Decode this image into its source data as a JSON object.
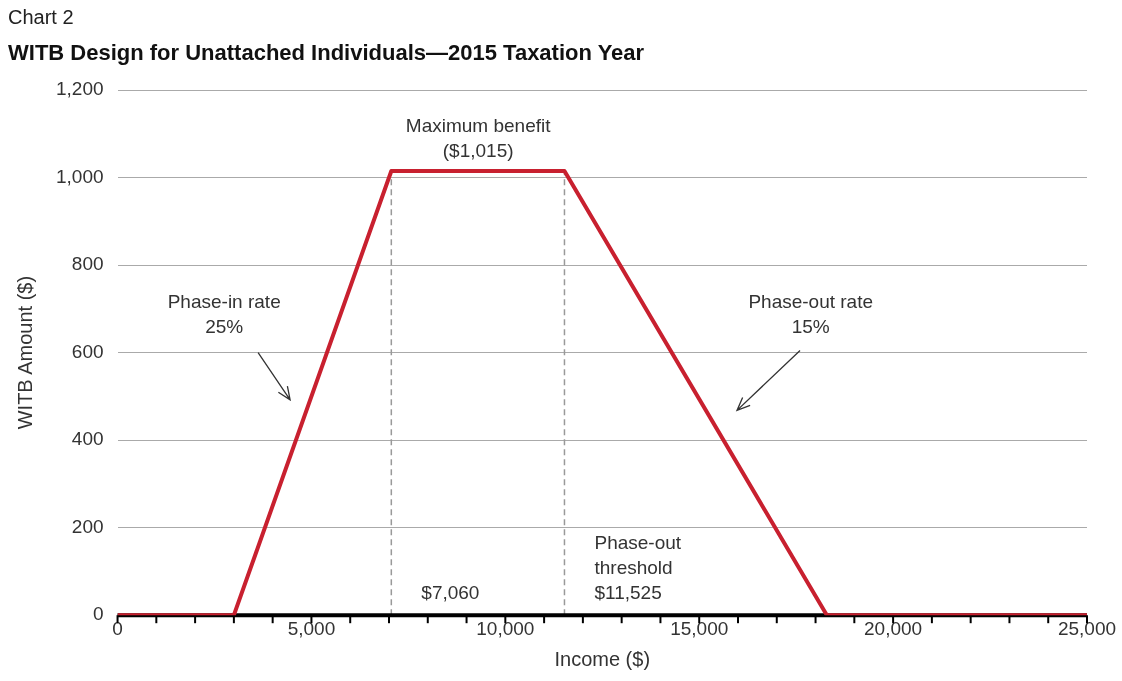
{
  "chart_data": {
    "type": "line",
    "subtitle": "Chart 2",
    "title": "WITB Design for Unattached Individuals—2015 Taxation Year",
    "xlabel": "Income ($)",
    "ylabel": "WITB Amount ($)",
    "series": [
      {
        "color": "#c8202f",
        "x": [
          0,
          3000,
          7060,
          11525,
          18292,
          25000
        ],
        "values": [
          0,
          0,
          1015,
          1015,
          0,
          0
        ]
      }
    ],
    "xlim": [
      0,
      25000
    ],
    "xticks": [
      0,
      {
        "value": 1000,
        "label": null
      },
      {
        "value": 2000,
        "label": null
      },
      {
        "value": 3000,
        "label": null
      },
      {
        "value": 4000,
        "label": null
      },
      {
        "value": 5000,
        "label": "5,000"
      },
      {
        "value": 6000,
        "label": null
      },
      {
        "value": 7000,
        "label": null
      },
      {
        "value": 8000,
        "label": null
      },
      {
        "value": 9000,
        "label": null
      },
      {
        "value": 10000,
        "label": "10,000"
      },
      {
        "value": 11000,
        "label": null
      },
      {
        "value": 12000,
        "label": null
      },
      {
        "value": 13000,
        "label": null
      },
      {
        "value": 14000,
        "label": null
      },
      {
        "value": 15000,
        "label": "15,000"
      },
      {
        "value": 16000,
        "label": null
      },
      {
        "value": 17000,
        "label": null
      },
      {
        "value": 18000,
        "label": null
      },
      {
        "value": 19000,
        "label": null
      },
      {
        "value": 20000,
        "label": "20,000"
      },
      {
        "value": 21000,
        "label": null
      },
      {
        "value": 22000,
        "label": null
      },
      {
        "value": 23000,
        "label": null
      },
      {
        "value": 24000,
        "label": null
      },
      {
        "value": 25000,
        "label": "25,000"
      }
    ],
    "ylim": [
      0,
      1200
    ],
    "yticks": [
      0,
      200,
      400,
      600,
      800,
      {
        "value": 1000,
        "label": "1,000"
      },
      {
        "value": 1200,
        "label": "1,200"
      }
    ],
    "grid": "y",
    "legend": false,
    "marker": "none",
    "line_style": "solid",
    "ref_lines": [
      {
        "axis": "x",
        "value": 7060,
        "label": "$7,060",
        "line_style": "dashed",
        "color": "#999999"
      },
      {
        "axis": "x",
        "value": 11525,
        "label": "Phase-out threshold $11,525",
        "line_style": "dashed",
        "color": "#999999"
      }
    ],
    "annotations": [
      {
        "text": "Maximum benefit ($1,015)",
        "x": 9300,
        "y": 1015
      },
      "Phase-in rate 25%",
      "Phase-out rate 15%"
    ]
  }
}
